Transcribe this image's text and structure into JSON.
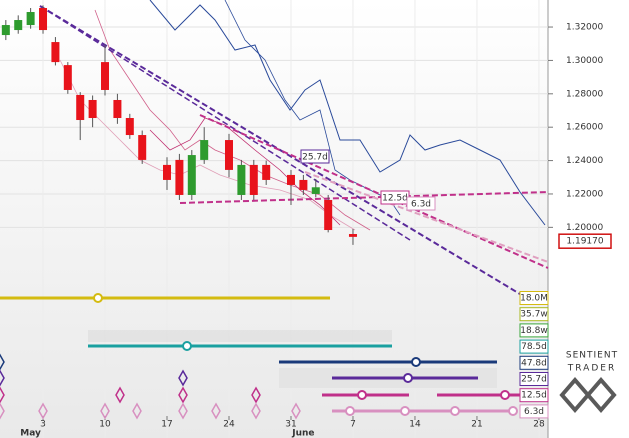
{
  "chart_data": {
    "type": "candlestick",
    "xlim": [
      -3.47,
      40.73
    ],
    "ylim": [
      1.0738,
      1.3362
    ],
    "yticks": [
      {
        "value": 1.32,
        "label": "1.32000"
      },
      {
        "value": 1.3,
        "label": "1.30000"
      },
      {
        "value": 1.28,
        "label": "1.28000"
      },
      {
        "value": 1.26,
        "label": "1.26000"
      },
      {
        "value": 1.24,
        "label": "1.24000"
      },
      {
        "value": 1.22,
        "label": "1.22000"
      },
      {
        "value": 1.2,
        "label": "1.20000"
      }
    ],
    "xticks": [
      {
        "value": 0,
        "label": "3"
      },
      {
        "value": 5,
        "label": "10"
      },
      {
        "value": 10,
        "label": "17"
      },
      {
        "value": 15,
        "label": "24"
      },
      {
        "value": 20,
        "label": "31"
      },
      {
        "value": 25,
        "label": "7"
      },
      {
        "value": 30,
        "label": "14"
      },
      {
        "value": 35,
        "label": "21"
      },
      {
        "value": 40,
        "label": "28"
      }
    ],
    "month_ticks": [
      {
        "value": -1,
        "label": "May"
      },
      {
        "value": 21,
        "label": "June"
      }
    ],
    "grid": true,
    "up_color": "#2e9b2e",
    "down_color": "#e8131b",
    "candles": {
      "x": [
        -3,
        -2,
        -1,
        0,
        1,
        2,
        3,
        4,
        5,
        6,
        7,
        8,
        10,
        11,
        12,
        13,
        15,
        16,
        17,
        18,
        20,
        21,
        22,
        23,
        25
      ],
      "open": [
        1.3152,
        1.3182,
        1.3212,
        1.3314,
        1.311,
        1.2972,
        1.2793,
        1.2763,
        1.299,
        1.2763,
        1.2655,
        1.2553,
        1.2374,
        1.2404,
        1.2194,
        1.2404,
        1.2523,
        1.2194,
        1.2374,
        1.2374,
        1.2314,
        1.2284,
        1.22,
        1.2164,
        1.196
      ],
      "high": [
        1.3242,
        1.327,
        1.3314,
        1.333,
        1.314,
        1.299,
        1.281,
        1.279,
        1.3092,
        1.28,
        1.268,
        1.258,
        1.242,
        1.244,
        1.2463,
        1.26,
        1.256,
        1.2404,
        1.2404,
        1.24,
        1.2344,
        1.2314,
        1.229,
        1.2194,
        1.199
      ],
      "low": [
        1.3122,
        1.316,
        1.319,
        1.316,
        1.297,
        1.28,
        1.2523,
        1.26,
        1.279,
        1.262,
        1.253,
        1.238,
        1.2224,
        1.2164,
        1.2164,
        1.238,
        1.23,
        1.2164,
        1.2164,
        1.2254,
        1.2134,
        1.2194,
        1.218,
        1.197,
        1.1895
      ],
      "close": [
        1.3212,
        1.3242,
        1.329,
        1.3182,
        1.299,
        1.2823,
        1.2643,
        1.2655,
        1.2823,
        1.2655,
        1.2553,
        1.2404,
        1.2284,
        1.2194,
        1.2433,
        1.2523,
        1.2344,
        1.2374,
        1.2194,
        1.2284,
        1.2254,
        1.2224,
        1.224,
        1.1984,
        1.1943
      ]
    },
    "last_price": {
      "value": 1.1917,
      "label": "1.19170"
    },
    "annotations": [
      "25.7d",
      "12.5d",
      "6.3d"
    ],
    "cycles": [
      {
        "label": "18.0M",
        "color": "#d4bb10"
      },
      {
        "label": "35.7w",
        "color": "#a8b820"
      },
      {
        "label": "18.8w",
        "color": "#3aa63a"
      },
      {
        "label": "78.5d",
        "color": "#1aa0a0"
      },
      {
        "label": "47.8d",
        "color": "#1a3a7a"
      },
      {
        "label": "25.7d",
        "color": "#5a2a9a"
      },
      {
        "label": "12.5d",
        "color": "#c0308a"
      },
      {
        "label": "6.3d",
        "color": "#d890c0"
      }
    ],
    "logo": [
      "SENTIENT",
      "TRADER"
    ]
  }
}
